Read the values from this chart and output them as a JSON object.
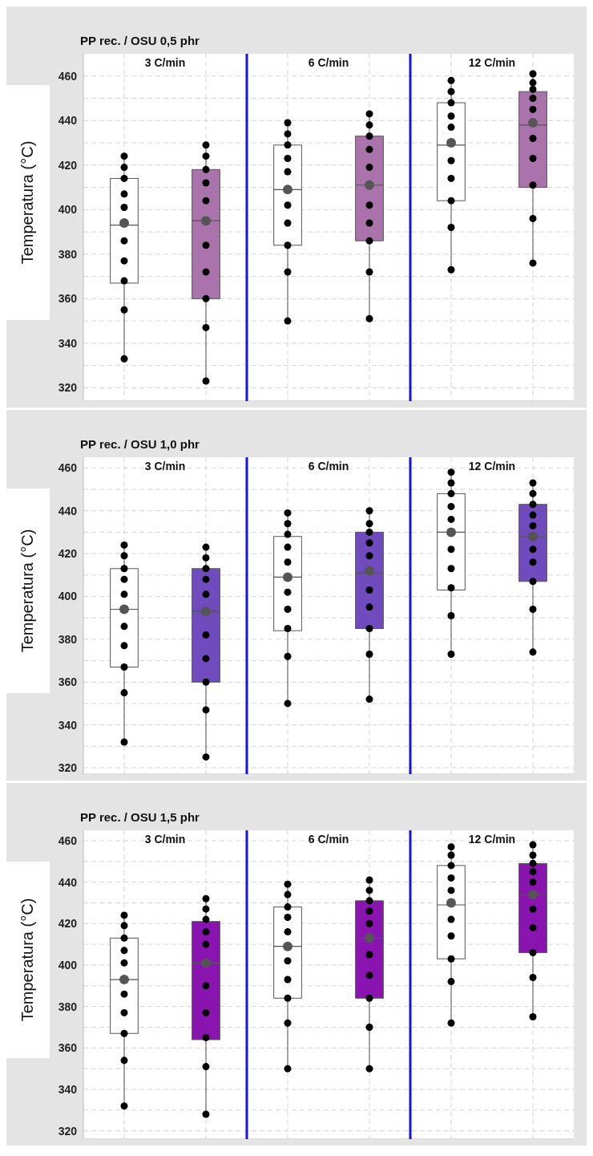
{
  "chart_data": [
    {
      "type": "box",
      "title": "PP rec. / OSU 0,5 phr",
      "ylabel": "Temperatura (°C)",
      "categories": [
        "3 C/min",
        "6 C/min",
        "12 C/min"
      ],
      "ylim": [
        314,
        470
      ],
      "yticks": [
        320,
        {
          "value": 330,
          "label": null
        },
        340,
        {
          "value": 350,
          "label": null
        },
        360,
        {
          "value": 370,
          "label": null
        },
        380,
        {
          "value": 390,
          "label": null
        },
        400,
        {
          "value": 410,
          "label": null
        },
        420,
        {
          "value": 430,
          "label": null
        },
        440,
        {
          "value": 450,
          "label": null
        },
        460
      ],
      "grid": true,
      "series": [
        {
          "type": "box",
          "color": "#ffffff",
          "boxes": [
            {
              "low": 333,
              "q1": 367,
              "median": 393,
              "q3": 414,
              "high": 424,
              "mean": 394
            },
            {
              "low": 350,
              "q1": 384,
              "median": 409,
              "q3": 429,
              "high": 439,
              "mean": 409
            },
            {
              "low": 373,
              "q1": 404,
              "median": 429,
              "q3": 448,
              "high": 458,
              "mean": 430
            }
          ]
        },
        {
          "type": "box",
          "color": "#ab73ab",
          "boxes": [
            {
              "low": 323,
              "q1": 360,
              "median": 395,
              "q3": 418,
              "high": 429,
              "mean": 395
            },
            {
              "low": 351,
              "q1": 386,
              "median": 411,
              "q3": 433,
              "high": 443,
              "mean": 411
            },
            {
              "low": 376,
              "q1": 410,
              "median": 438,
              "q3": 453,
              "high": 461,
              "mean": 439
            }
          ]
        },
        {
          "type": "scatter",
          "color": "#000000",
          "marker": "circle",
          "x": [
            "3 C/min",
            "3 C/min",
            "3 C/min",
            "3 C/min",
            "3 C/min",
            "3 C/min",
            "3 C/min",
            "3 C/min",
            "3 C/min",
            "3 C/min",
            "6 C/min",
            "6 C/min",
            "6 C/min",
            "6 C/min",
            "6 C/min",
            "6 C/min",
            "6 C/min",
            "6 C/min",
            "6 C/min",
            "6 C/min",
            "12 C/min",
            "12 C/min",
            "12 C/min",
            "12 C/min",
            "12 C/min",
            "12 C/min",
            "12 C/min",
            "12 C/min",
            "12 C/min",
            "12 C/min"
          ],
          "values": [
            424,
            419,
            414,
            407,
            401,
            386,
            377,
            368,
            355,
            333,
            439,
            434,
            429,
            423,
            417,
            402,
            394,
            384,
            372,
            350,
            458,
            453,
            448,
            442,
            437,
            422,
            414,
            404,
            392,
            373
          ]
        },
        {
          "type": "scatter",
          "color": "#000000",
          "marker": "circle",
          "x": [
            "3 C/min",
            "3 C/min",
            "3 C/min",
            "3 C/min",
            "3 C/min",
            "3 C/min",
            "3 C/min",
            "3 C/min",
            "3 C/min",
            "3 C/min",
            "6 C/min",
            "6 C/min",
            "6 C/min",
            "6 C/min",
            "6 C/min",
            "6 C/min",
            "6 C/min",
            "6 C/min",
            "6 C/min",
            "6 C/min",
            "12 C/min",
            "12 C/min",
            "12 C/min",
            "12 C/min",
            "12 C/min",
            "12 C/min",
            "12 C/min",
            "12 C/min",
            "12 C/min",
            "12 C/min"
          ],
          "values": [
            429,
            424,
            418,
            412,
            404,
            384,
            372,
            360,
            347,
            323,
            443,
            438,
            433,
            427,
            419,
            402,
            394,
            386,
            372,
            351,
            461,
            457,
            454,
            450,
            445,
            432,
            423,
            411,
            396,
            376
          ]
        }
      ]
    },
    {
      "type": "box",
      "title": "PP rec. / OSU 1,0 phr",
      "ylabel": "Temperatura (°C)",
      "categories": [
        "3 C/min",
        "6 C/min",
        "12 C/min"
      ],
      "ylim": [
        317,
        465
      ],
      "yticks": [
        320,
        {
          "value": 330,
          "label": null
        },
        340,
        {
          "value": 350,
          "label": null
        },
        360,
        {
          "value": 370,
          "label": null
        },
        380,
        {
          "value": 390,
          "label": null
        },
        400,
        {
          "value": 410,
          "label": null
        },
        420,
        {
          "value": 430,
          "label": null
        },
        440,
        {
          "value": 450,
          "label": null
        },
        460
      ],
      "grid": true,
      "series": [
        {
          "type": "box",
          "color": "#ffffff",
          "boxes": [
            {
              "low": 332,
              "q1": 367,
              "median": 394,
              "q3": 413,
              "high": 424,
              "mean": 394
            },
            {
              "low": 350,
              "q1": 384,
              "median": 409,
              "q3": 428,
              "high": 439,
              "mean": 409
            },
            {
              "low": 373,
              "q1": 403,
              "median": 430,
              "q3": 448,
              "high": 458,
              "mean": 430
            }
          ]
        },
        {
          "type": "box",
          "color": "#704bbd",
          "boxes": [
            {
              "low": 325,
              "q1": 360,
              "median": 393,
              "q3": 413,
              "high": 423,
              "mean": 393
            },
            {
              "low": 352,
              "q1": 385,
              "median": 411,
              "q3": 430,
              "high": 440,
              "mean": 412
            },
            {
              "low": 374,
              "q1": 407,
              "median": 428,
              "q3": 443,
              "high": 453,
              "mean": 428
            }
          ]
        },
        {
          "type": "scatter",
          "color": "#000000",
          "marker": "circle",
          "x": [
            "3 C/min",
            "3 C/min",
            "3 C/min",
            "3 C/min",
            "3 C/min",
            "3 C/min",
            "3 C/min",
            "3 C/min",
            "3 C/min",
            "3 C/min",
            "6 C/min",
            "6 C/min",
            "6 C/min",
            "6 C/min",
            "6 C/min",
            "6 C/min",
            "6 C/min",
            "6 C/min",
            "6 C/min",
            "6 C/min",
            "12 C/min",
            "12 C/min",
            "12 C/min",
            "12 C/min",
            "12 C/min",
            "12 C/min",
            "12 C/min",
            "12 C/min",
            "12 C/min",
            "12 C/min"
          ],
          "values": [
            424,
            419,
            413,
            408,
            401,
            386,
            377,
            367,
            355,
            332,
            439,
            434,
            429,
            423,
            416,
            402,
            394,
            385,
            372,
            350,
            458,
            453,
            448,
            442,
            436,
            422,
            413,
            404,
            391,
            373
          ]
        },
        {
          "type": "scatter",
          "color": "#000000",
          "marker": "circle",
          "x": [
            "3 C/min",
            "3 C/min",
            "3 C/min",
            "3 C/min",
            "3 C/min",
            "3 C/min",
            "3 C/min",
            "3 C/min",
            "3 C/min",
            "3 C/min",
            "6 C/min",
            "6 C/min",
            "6 C/min",
            "6 C/min",
            "6 C/min",
            "6 C/min",
            "6 C/min",
            "6 C/min",
            "6 C/min",
            "6 C/min",
            "12 C/min",
            "12 C/min",
            "12 C/min",
            "12 C/min",
            "12 C/min",
            "12 C/min",
            "12 C/min",
            "12 C/min",
            "12 C/min",
            "12 C/min"
          ],
          "values": [
            423,
            418,
            413,
            408,
            401,
            382,
            371,
            360,
            347,
            325,
            440,
            434,
            430,
            425,
            419,
            403,
            395,
            385,
            373,
            352,
            453,
            448,
            443,
            438,
            433,
            422,
            416,
            407,
            394,
            374
          ]
        }
      ]
    },
    {
      "type": "box",
      "title": "PP rec. / OSU 1,5 phr",
      "ylabel": "Temperatura (°C)",
      "categories": [
        "3 C/min",
        "6 C/min",
        "12 C/min"
      ],
      "ylim": [
        316,
        465
      ],
      "yticks": [
        320,
        {
          "value": 330,
          "label": null
        },
        340,
        {
          "value": 350,
          "label": null
        },
        360,
        {
          "value": 370,
          "label": null
        },
        380,
        {
          "value": 390,
          "label": null
        },
        400,
        {
          "value": 410,
          "label": null
        },
        420,
        {
          "value": 430,
          "label": null
        },
        440,
        {
          "value": 450,
          "label": null
        },
        460
      ],
      "grid": true,
      "series": [
        {
          "type": "box",
          "color": "#ffffff",
          "boxes": [
            {
              "low": 332,
              "q1": 367,
              "median": 393,
              "q3": 413,
              "high": 424,
              "mean": 393
            },
            {
              "low": 350,
              "q1": 384,
              "median": 409,
              "q3": 428,
              "high": 439,
              "mean": 409
            },
            {
              "low": 372,
              "q1": 403,
              "median": 429,
              "q3": 448,
              "high": 457,
              "mean": 430
            }
          ]
        },
        {
          "type": "box",
          "color": "#8a14b0",
          "boxes": [
            {
              "low": 328,
              "q1": 364,
              "median": 401,
              "q3": 421,
              "high": 432,
              "mean": 401
            },
            {
              "low": 350,
              "q1": 384,
              "median": 413,
              "q3": 431,
              "high": 441,
              "mean": 413
            },
            {
              "low": 375,
              "q1": 406,
              "median": 434,
              "q3": 449,
              "high": 458,
              "mean": 434
            }
          ]
        },
        {
          "type": "scatter",
          "color": "#000000",
          "marker": "circle",
          "x": [
            "3 C/min",
            "3 C/min",
            "3 C/min",
            "3 C/min",
            "3 C/min",
            "3 C/min",
            "3 C/min",
            "3 C/min",
            "3 C/min",
            "3 C/min",
            "6 C/min",
            "6 C/min",
            "6 C/min",
            "6 C/min",
            "6 C/min",
            "6 C/min",
            "6 C/min",
            "6 C/min",
            "6 C/min",
            "6 C/min",
            "12 C/min",
            "12 C/min",
            "12 C/min",
            "12 C/min",
            "12 C/min",
            "12 C/min",
            "12 C/min",
            "12 C/min",
            "12 C/min",
            "12 C/min"
          ],
          "values": [
            424,
            419,
            413,
            407,
            401,
            386,
            377,
            367,
            354,
            332,
            439,
            434,
            428,
            423,
            416,
            402,
            393,
            384,
            372,
            350,
            457,
            453,
            448,
            442,
            436,
            422,
            414,
            403,
            392,
            372
          ]
        },
        {
          "type": "scatter",
          "color": "#000000",
          "marker": "circle",
          "x": [
            "3 C/min",
            "3 C/min",
            "3 C/min",
            "3 C/min",
            "3 C/min",
            "3 C/min",
            "3 C/min",
            "3 C/min",
            "3 C/min",
            "3 C/min",
            "6 C/min",
            "6 C/min",
            "6 C/min",
            "6 C/min",
            "6 C/min",
            "6 C/min",
            "6 C/min",
            "6 C/min",
            "6 C/min",
            "6 C/min",
            "12 C/min",
            "12 C/min",
            "12 C/min",
            "12 C/min",
            "12 C/min",
            "12 C/min",
            "12 C/min",
            "12 C/min",
            "12 C/min",
            "12 C/min"
          ],
          "values": [
            432,
            427,
            422,
            416,
            410,
            390,
            377,
            365,
            351,
            328,
            441,
            436,
            431,
            426,
            420,
            405,
            395,
            384,
            370,
            350,
            458,
            453,
            449,
            445,
            440,
            427,
            418,
            406,
            394,
            375
          ]
        }
      ]
    }
  ]
}
